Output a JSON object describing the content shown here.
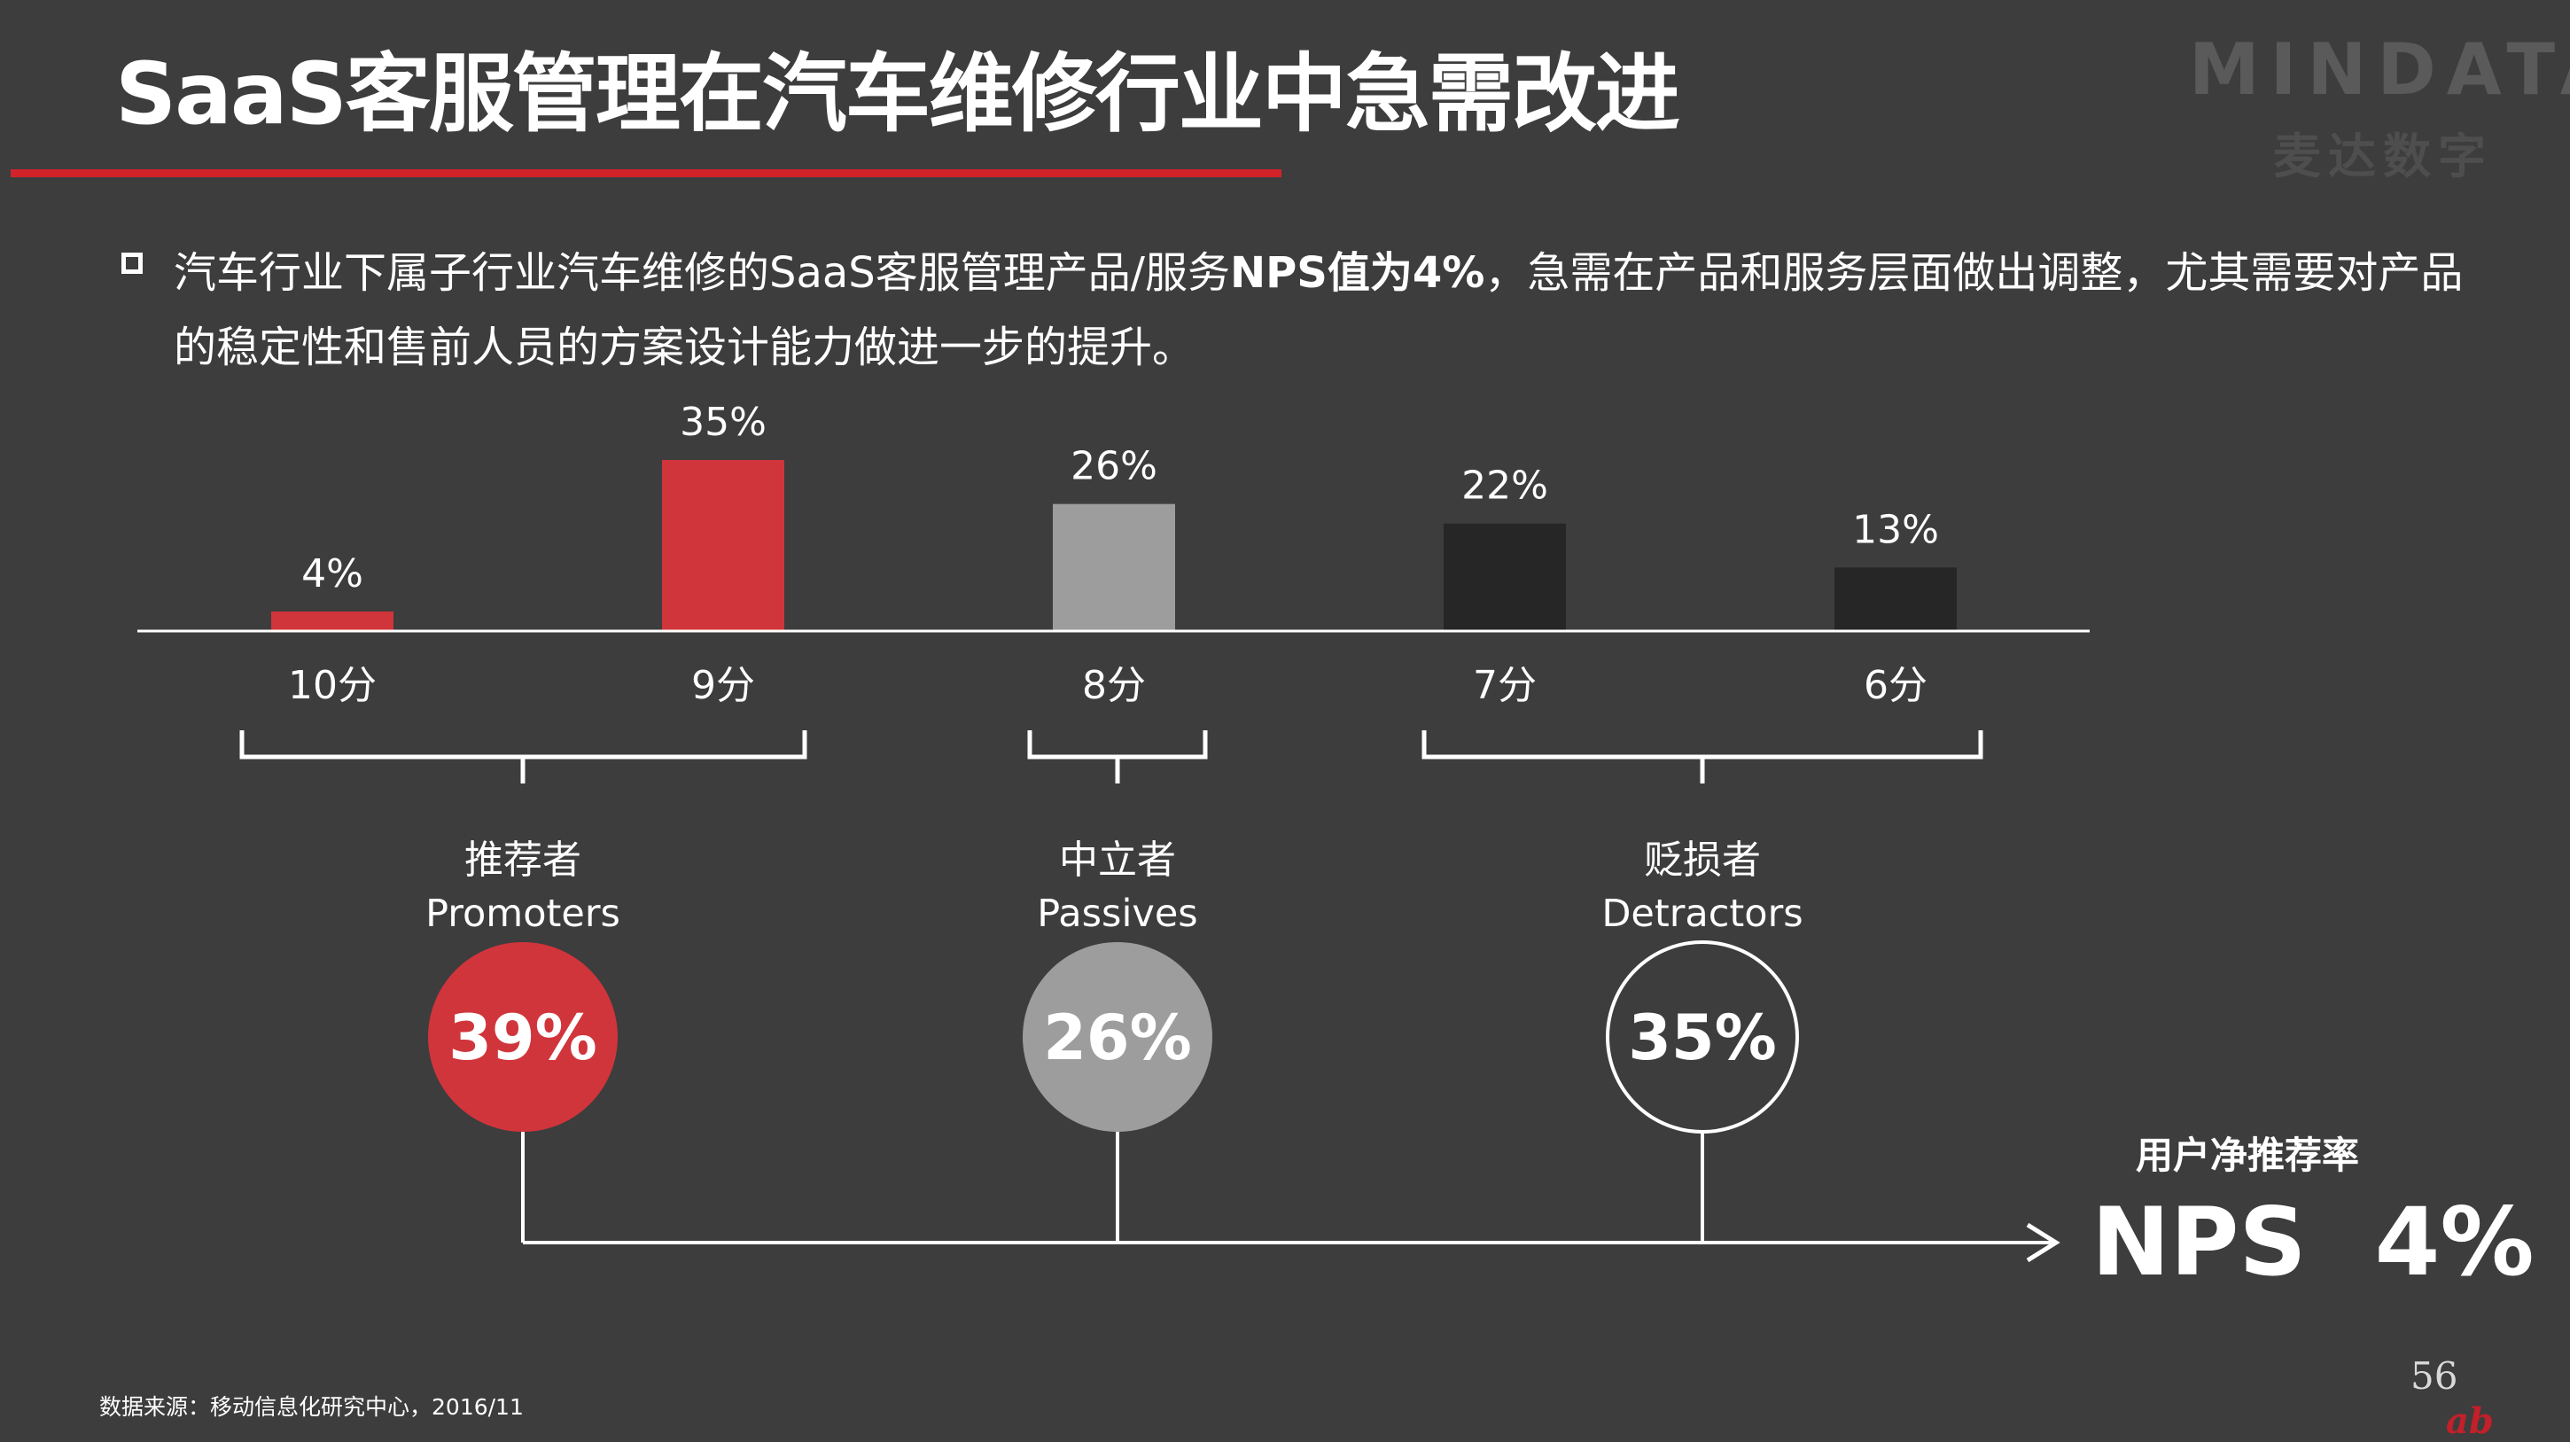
{
  "slide": {
    "title": "SaaS客服管理在汽车维修行业中急需改进",
    "logo_text": "MINDATA",
    "logo_cn": "麦达数字",
    "bullet_text_1": "汽车行业下属子行业汽车维修的SaaS客服管理产品/服务",
    "bullet_text_bold": "NPS值为4%",
    "bullet_text_2": "，急需在产品和服务层面做出调整，尤其需要对产品的稳定性和售前人员的方案设计能力做进一步的提升。",
    "source": "数据来源：移动信息化研究中心，2016/11",
    "page_number": "56",
    "nps_caption": "用户净推荐率",
    "nps_value": "NPS 4%",
    "colors": {
      "accent_red": "#d0353b",
      "passive_gray": "#9d9d9d",
      "detractor_dark": "#262626",
      "background": "#3d3d3d"
    }
  },
  "chart_data": {
    "type": "bar",
    "categories": [
      "10分",
      "9分",
      "8分",
      "7分",
      "6分"
    ],
    "values": [
      4,
      35,
      26,
      22,
      13
    ],
    "value_labels": [
      "4%",
      "35%",
      "26%",
      "22%",
      "13%"
    ],
    "bar_colors": [
      "#d0353b",
      "#d0353b",
      "#9d9d9d",
      "#262626",
      "#262626"
    ],
    "ylim": [
      0,
      35
    ]
  },
  "groups": [
    {
      "cn": "推荐者",
      "en": "Promoters",
      "value": "39%",
      "style": "red"
    },
    {
      "cn": "中立者",
      "en": "Passives",
      "value": "26%",
      "style": "gray"
    },
    {
      "cn": "贬损者",
      "en": "Detractors",
      "value": "35%",
      "style": "outline"
    }
  ]
}
